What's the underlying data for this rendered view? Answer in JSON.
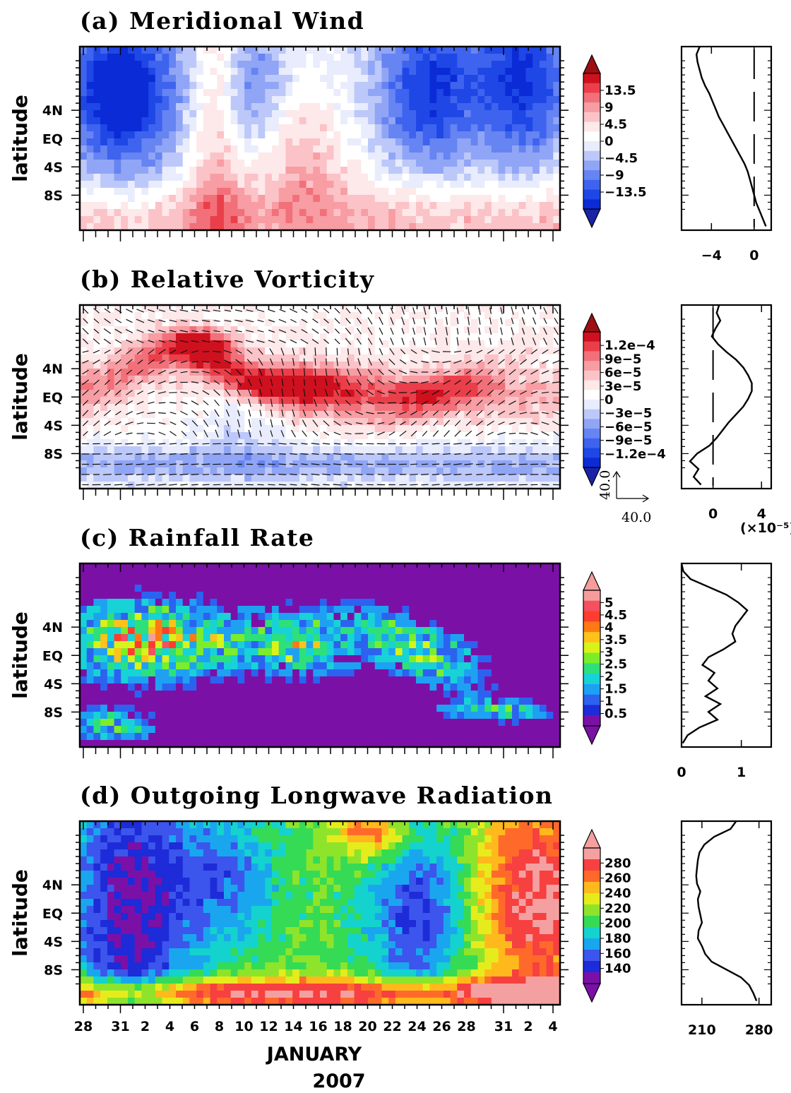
{
  "figure": {
    "x_month_label": "JANUARY",
    "x_year_label": "2007",
    "y_label": "latitude"
  },
  "x_tick_labels": [
    "28",
    "31",
    "2",
    "4",
    "6",
    "8",
    "10",
    "12",
    "14",
    "16",
    "18",
    "20",
    "22",
    "24",
    "26",
    "28",
    "31",
    "2",
    "4"
  ],
  "lat_tick_labels": [
    "4N",
    "EQ",
    "4S",
    "8S"
  ],
  "colors": {
    "wind_scale": [
      "#0a2bd6",
      "#1e47e6",
      "#3e63ee",
      "#6684f2",
      "#90a5f5",
      "#bcc8f9",
      "#e8ecfc",
      "#ffffff",
      "#fde8ea",
      "#fbc3c7",
      "#f79da3",
      "#f2707a",
      "#ea3f4a",
      "#cf101f"
    ],
    "wind_end_low": "#1a23a8",
    "wind_end_high": "#9e0f14",
    "rain_scale": [
      "#7b10a7",
      "#1d2bd8",
      "#2c62f0",
      "#1ea1f2",
      "#17d3d6",
      "#2de07a",
      "#7ced2a",
      "#d9f21a",
      "#ffc21a",
      "#ff7a15",
      "#ff3d2e",
      "#f5505e",
      "#f59d9d"
    ],
    "olr_scale": [
      "#7b10a7",
      "#1d2bd8",
      "#3c55ec",
      "#1aa6ef",
      "#14d2cd",
      "#35db55",
      "#8ee42b",
      "#e6ec1c",
      "#ffb91d",
      "#ff6a2a",
      "#f74040",
      "#f5a0a0"
    ]
  },
  "panels": [
    {
      "id": "a",
      "title": "(a)  Meridional Wind",
      "colorbar_labels": [
        "13.5",
        "9",
        "4.5",
        "0",
        "−4.5",
        "−9",
        "−13.5"
      ],
      "profile": {
        "x_tick_labels": [
          "−4",
          "0"
        ],
        "x_ticks": [
          -4,
          0
        ],
        "xlim": [
          -6.8,
          1.6
        ],
        "lat": [
          12,
          11,
          10,
          9,
          8,
          7,
          6,
          5,
          4,
          3,
          2,
          1,
          0,
          -1,
          -2,
          -3,
          -4,
          -5,
          -6,
          -7,
          -8,
          -9,
          -10,
          -11
        ],
        "values": [
          -5.1,
          -5.4,
          -5.3,
          -5.1,
          -4.9,
          -4.6,
          -4.2,
          -3.9,
          -3.6,
          -3.3,
          -2.9,
          -2.5,
          -2.1,
          -1.7,
          -1.3,
          -0.9,
          -0.6,
          -0.4,
          -0.2,
          0.0,
          0.2,
          0.5,
          0.8,
          1.1
        ]
      }
    },
    {
      "id": "b",
      "title": "(b)  Relative Vorticity",
      "colorbar_labels": [
        "1.2e−4",
        "9e−5",
        "6e−5",
        "3e−5",
        "0",
        "−3e−5",
        "−6e−5",
        "−9e−5",
        "−1.2e−4"
      ],
      "vector_label_vertical": "40.0",
      "vector_label_horizontal": "40.0",
      "profile": {
        "x_tick_labels": [
          "0",
          "4"
        ],
        "x_ticks": [
          0,
          4
        ],
        "xlim": [
          -2.6,
          4.8
        ],
        "multiplier_label": "(×10⁻⁵)",
        "lat": [
          12,
          11,
          10,
          9,
          8,
          7,
          6,
          5,
          4,
          3,
          2,
          1,
          0,
          -1,
          -2,
          -3,
          -4,
          -5,
          -6,
          -7,
          -8,
          -9,
          -10,
          -11
        ],
        "values": [
          0.5,
          0.3,
          0.6,
          0.2,
          -0.1,
          0.4,
          1.1,
          1.9,
          2.5,
          2.9,
          3.2,
          3.2,
          2.9,
          2.5,
          1.9,
          1.3,
          0.8,
          0.3,
          -0.3,
          -1.3,
          -1.9,
          -1.2,
          -1.6,
          -1.0
        ]
      }
    },
    {
      "id": "c",
      "title": "(c)  Rainfall Rate",
      "colorbar_labels": [
        "5",
        "4.5",
        "4",
        "3.5",
        "3",
        "2.5",
        "2",
        "1.5",
        "1",
        "0.5"
      ],
      "profile": {
        "x_tick_labels": [
          "0",
          "1"
        ],
        "x_ticks": [
          0,
          1
        ],
        "xlim": [
          0,
          1.5
        ],
        "lat": [
          12,
          11,
          10,
          9,
          8,
          7,
          6,
          5,
          4,
          3,
          2,
          1,
          0,
          -1,
          -2,
          -3,
          -4,
          -5,
          -6,
          -7,
          -8,
          -9,
          -10,
          -11
        ],
        "values": [
          0.0,
          0.03,
          0.15,
          0.45,
          0.75,
          0.95,
          1.1,
          1.0,
          0.9,
          0.85,
          0.9,
          0.7,
          0.45,
          0.35,
          0.55,
          0.45,
          0.6,
          0.4,
          0.65,
          0.45,
          0.6,
          0.3,
          0.1,
          0.02
        ]
      }
    },
    {
      "id": "d",
      "title": "(d)  Outgoing Longwave Radiation",
      "colorbar_labels": [
        "280",
        "260",
        "240",
        "220",
        "200",
        "180",
        "160",
        "140"
      ],
      "profile": {
        "x_tick_labels": [
          "210",
          "280"
        ],
        "x_ticks": [
          210,
          280
        ],
        "xlim": [
          185,
          295
        ],
        "lat": [
          12,
          11,
          10,
          9,
          8,
          7,
          6,
          5,
          4,
          3,
          2,
          1,
          0,
          -1,
          -2,
          -3,
          -4,
          -5,
          -6,
          -7,
          -8,
          -9,
          -10,
          -11
        ],
        "values": [
          252,
          245,
          225,
          213,
          207,
          205,
          204,
          203,
          204,
          208,
          205,
          206,
          208,
          210,
          206,
          205,
          210,
          214,
          222,
          240,
          258,
          268,
          273,
          277
        ]
      }
    }
  ]
}
